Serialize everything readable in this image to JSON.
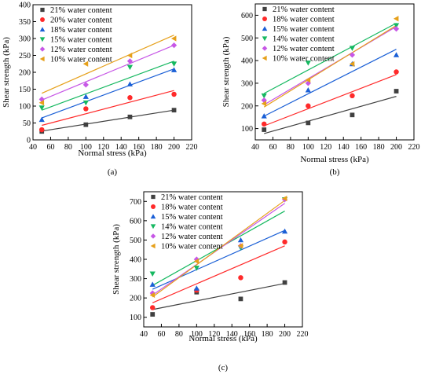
{
  "chart_data": [
    {
      "type": "scatter",
      "panel_label": "(a)",
      "xlabel": "Normal stress (kPa)",
      "ylabel": "Shear strength (kPa)",
      "xlim": [
        40,
        220
      ],
      "ylim": [
        0,
        400
      ],
      "xticks": [
        40,
        60,
        80,
        100,
        120,
        140,
        160,
        180,
        200,
        220
      ],
      "yticks": [
        0,
        50,
        100,
        150,
        200,
        250,
        300,
        350,
        400
      ],
      "legend_position": "top-left",
      "series": [
        {
          "name": "21% water content",
          "color": "#404040",
          "marker": "square",
          "x": [
            50,
            100,
            150,
            200
          ],
          "y": [
            25,
            45,
            68,
            88
          ],
          "fit": [
            [
              50,
              26
            ],
            [
              200,
              88
            ]
          ]
        },
        {
          "name": "20% water content",
          "color": "#ff2a2a",
          "marker": "circle",
          "x": [
            50,
            100,
            150,
            200
          ],
          "y": [
            30,
            92,
            125,
            135
          ],
          "fit": [
            [
              50,
              43
            ],
            [
              200,
              146
            ]
          ]
        },
        {
          "name": "18% water content",
          "color": "#1a5fd6",
          "marker": "triangle-up",
          "x": [
            50,
            100,
            150,
            200
          ],
          "y": [
            60,
            128,
            165,
            207
          ],
          "fit": [
            [
              50,
              65
            ],
            [
              200,
              210
            ]
          ]
        },
        {
          "name": "15% water content",
          "color": "#15b860",
          "marker": "triangle-down",
          "x": [
            50,
            100,
            150,
            200
          ],
          "y": [
            95,
            110,
            215,
            225
          ],
          "fit": [
            [
              50,
              88
            ],
            [
              200,
              233
            ]
          ]
        },
        {
          "name": "12% water content",
          "color": "#c757e6",
          "marker": "diamond",
          "x": [
            50,
            100,
            150,
            200
          ],
          "y": [
            120,
            163,
            233,
            280
          ],
          "fit": [
            [
              50,
              118
            ],
            [
              200,
              280
            ]
          ]
        },
        {
          "name": "10% water content",
          "color": "#e6a01a",
          "marker": "triangle-left",
          "x": [
            50,
            100,
            150,
            200
          ],
          "y": [
            110,
            225,
            250,
            300
          ],
          "fit": [
            [
              50,
              138
            ],
            [
              200,
              310
            ]
          ]
        }
      ]
    },
    {
      "type": "scatter",
      "panel_label": "(b)",
      "xlabel": "Normal stress (kPa)",
      "ylabel": "Shear strength (kPa)",
      "xlim": [
        40,
        220
      ],
      "ylim": [
        50,
        650
      ],
      "xticks": [
        40,
        60,
        80,
        100,
        120,
        140,
        160,
        180,
        200,
        220
      ],
      "yticks": [
        100,
        200,
        300,
        400,
        500,
        600
      ],
      "legend_position": "top-left",
      "series": [
        {
          "name": "21% water content",
          "color": "#404040",
          "marker": "square",
          "x": [
            50,
            100,
            150,
            200
          ],
          "y": [
            95,
            125,
            160,
            265
          ],
          "fit": [
            [
              50,
              78
            ],
            [
              200,
              242
            ]
          ]
        },
        {
          "name": "18% water content",
          "color": "#ff2a2a",
          "marker": "circle",
          "x": [
            50,
            100,
            150,
            200
          ],
          "y": [
            120,
            200,
            245,
            350
          ],
          "fit": [
            [
              50,
              112
            ],
            [
              200,
              338
            ]
          ]
        },
        {
          "name": "15% water content",
          "color": "#1a5fd6",
          "marker": "triangle-up",
          "x": [
            50,
            100,
            150,
            200
          ],
          "y": [
            155,
            270,
            385,
            425
          ],
          "fit": [
            [
              50,
              155
            ],
            [
              200,
              450
            ]
          ]
        },
        {
          "name": "14% water content",
          "color": "#15b860",
          "marker": "triangle-down",
          "x": [
            50,
            100,
            150,
            200
          ],
          "y": [
            245,
            390,
            455,
            555
          ],
          "fit": [
            [
              50,
              255
            ],
            [
              200,
              565
            ]
          ]
        },
        {
          "name": "12% water content",
          "color": "#c757e6",
          "marker": "diamond",
          "x": [
            50,
            100,
            150,
            200
          ],
          "y": [
            225,
            300,
            425,
            540
          ],
          "fit": [
            [
              50,
              205
            ],
            [
              200,
              550
            ]
          ]
        },
        {
          "name": "10% water content",
          "color": "#e6a01a",
          "marker": "triangle-left",
          "x": [
            50,
            100,
            150,
            200
          ],
          "y": [
            210,
            315,
            385,
            585
          ],
          "fit": [
            [
              50,
              195
            ],
            [
              200,
              555
            ]
          ]
        }
      ]
    },
    {
      "type": "scatter",
      "panel_label": "(c)",
      "xlabel": "Normal stress (kPa)",
      "ylabel": "Shear strength (kPa)",
      "xlim": [
        40,
        220
      ],
      "ylim": [
        50,
        750
      ],
      "xticks": [
        40,
        60,
        80,
        100,
        120,
        140,
        160,
        180,
        200,
        220
      ],
      "yticks": [
        100,
        200,
        300,
        400,
        500,
        600,
        700
      ],
      "legend_position": "top-left",
      "series": [
        {
          "name": "21% water content",
          "color": "#404040",
          "marker": "square",
          "x": [
            50,
            100,
            150,
            200
          ],
          "y": [
            115,
            230,
            195,
            280
          ],
          "fit": [
            [
              50,
              140
            ],
            [
              200,
              275
            ]
          ]
        },
        {
          "name": "18% water content",
          "color": "#ff2a2a",
          "marker": "circle",
          "x": [
            50,
            100,
            150,
            200
          ],
          "y": [
            150,
            240,
            305,
            490
          ],
          "fit": [
            [
              50,
              175
            ],
            [
              200,
              470
            ]
          ]
        },
        {
          "name": "15% water content",
          "color": "#1a5fd6",
          "marker": "triangle-up",
          "x": [
            50,
            100,
            150,
            200
          ],
          "y": [
            270,
            250,
            500,
            545
          ],
          "fit": [
            [
              50,
              245
            ],
            [
              200,
              550
            ]
          ]
        },
        {
          "name": "14% water content",
          "color": "#15b860",
          "marker": "triangle-down",
          "x": [
            50,
            100,
            150,
            200
          ],
          "y": [
            325,
            355,
            460,
            710
          ],
          "fit": [
            [
              50,
              265
            ],
            [
              200,
              650
            ]
          ]
        },
        {
          "name": "12% water content",
          "color": "#c757e6",
          "marker": "diamond",
          "x": [
            50,
            100,
            150,
            200
          ],
          "y": [
            225,
            400,
            470,
            710
          ],
          "fit": [
            [
              50,
              215
            ],
            [
              200,
              690
            ]
          ]
        },
        {
          "name": "10% water content",
          "color": "#e6a01a",
          "marker": "triangle-left",
          "x": [
            50,
            100,
            150,
            200
          ],
          "y": [
            215,
            390,
            470,
            715
          ],
          "fit": [
            [
              50,
              205
            ],
            [
              200,
              705
            ]
          ]
        }
      ]
    }
  ]
}
